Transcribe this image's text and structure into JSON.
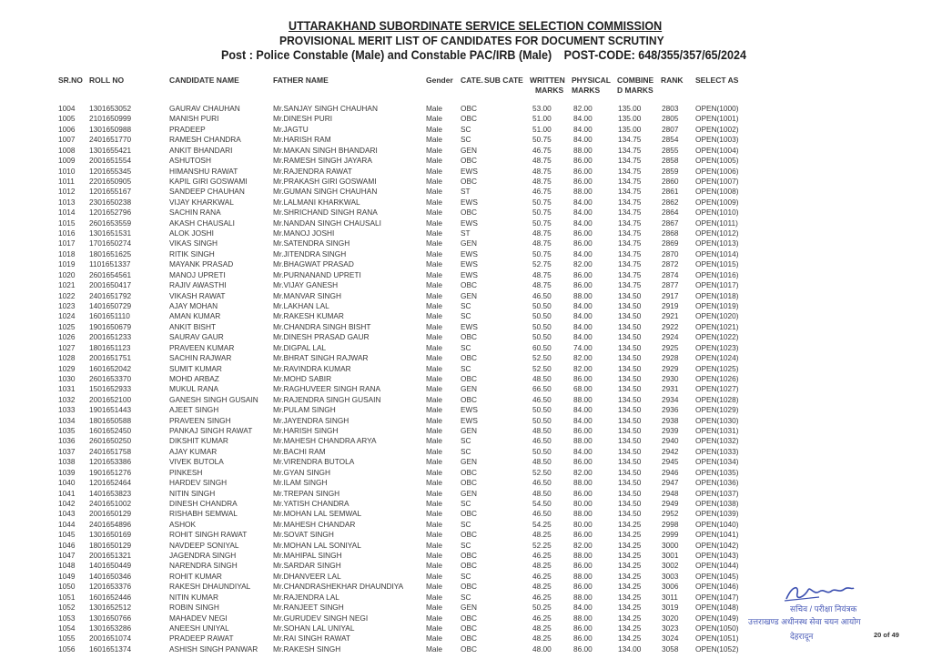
{
  "header": {
    "title": "UTTARAKHAND SUBORDINATE SERVICE SELECTION COMMISSION",
    "subtitle": "PROVISIONAL MERIT LIST OF CANDIDATES FOR DOCUMENT SCRUTINY",
    "post": "Post :  Police Constable (Male) and Constable PAC/IRB (Male)",
    "post_code": "POST-CODE: 648/355/357/65/2024"
  },
  "columns": {
    "sr_no": "SR.NO",
    "roll_no": "ROLL NO",
    "candidate_name": "CANDIDATE NAME",
    "father_name": "FATHER NAME",
    "gender": "Gender",
    "category": "CATE.",
    "sub_cate": "SUB CATE",
    "written_1": "WRITTEN",
    "written_2": "MARKS",
    "physical_1": "PHYSICAL",
    "physical_2": "MARKS",
    "combined_1": "COMBINE",
    "combined_2": "D MARKS",
    "rank": "RANK",
    "select_as": "SELECT AS"
  },
  "rows": [
    [
      "1004",
      "1301653052",
      "GAURAV CHAUHAN",
      "Mr.SANJAY SINGH CHAUHAN",
      "Male",
      "OBC",
      "",
      "53.00",
      "82.00",
      "135.00",
      "2803",
      "OPEN(1000)"
    ],
    [
      "1005",
      "2101650999",
      "MANISH PURI",
      "Mr.DINESH PURI",
      "Male",
      "OBC",
      "",
      "51.00",
      "84.00",
      "135.00",
      "2805",
      "OPEN(1001)"
    ],
    [
      "1006",
      "1301650988",
      "PRADEEP",
      "Mr.JAGTU",
      "Male",
      "SC",
      "",
      "51.00",
      "84.00",
      "135.00",
      "2807",
      "OPEN(1002)"
    ],
    [
      "1007",
      "2401651770",
      "RAMESH CHANDRA",
      "Mr.HARISH RAM",
      "Male",
      "SC",
      "",
      "50.75",
      "84.00",
      "134.75",
      "2854",
      "OPEN(1003)"
    ],
    [
      "1008",
      "1301655421",
      "ANKIT BHANDARI",
      "Mr.MAKAN SINGH BHANDARI",
      "Male",
      "GEN",
      "",
      "46.75",
      "88.00",
      "134.75",
      "2855",
      "OPEN(1004)"
    ],
    [
      "1009",
      "2001651554",
      "ASHUTOSH",
      "Mr.RAMESH SINGH JAYARA",
      "Male",
      "OBC",
      "",
      "48.75",
      "86.00",
      "134.75",
      "2858",
      "OPEN(1005)"
    ],
    [
      "1010",
      "1201655345",
      "HIMANSHU RAWAT",
      "Mr.RAJENDRA RAWAT",
      "Male",
      "EWS",
      "",
      "48.75",
      "86.00",
      "134.75",
      "2859",
      "OPEN(1006)"
    ],
    [
      "1011",
      "2201650905",
      "KAPIL GIRI GOSWAMI",
      "Mr.PRAKASH GIRI GOSWAMI",
      "Male",
      "OBC",
      "",
      "48.75",
      "86.00",
      "134.75",
      "2860",
      "OPEN(1007)"
    ],
    [
      "1012",
      "1201655167",
      "SANDEEP CHAUHAN",
      "Mr.GUMAN SINGH CHAUHAN",
      "Male",
      "ST",
      "",
      "46.75",
      "88.00",
      "134.75",
      "2861",
      "OPEN(1008)"
    ],
    [
      "1013",
      "2301650238",
      "VIJAY KHARKWAL",
      "Mr.LALMANI KHARKWAL",
      "Male",
      "EWS",
      "",
      "50.75",
      "84.00",
      "134.75",
      "2862",
      "OPEN(1009)"
    ],
    [
      "1014",
      "1201652796",
      "SACHIN RANA",
      "Mr.SHRICHAND SINGH RANA",
      "Male",
      "OBC",
      "",
      "50.75",
      "84.00",
      "134.75",
      "2864",
      "OPEN(1010)"
    ],
    [
      "1015",
      "2601653559",
      "AKASH CHAUSALI",
      "Mr.NANDAN SINGH CHAUSALI",
      "Male",
      "EWS",
      "",
      "50.75",
      "84.00",
      "134.75",
      "2867",
      "OPEN(1011)"
    ],
    [
      "1016",
      "1301651531",
      "ALOK JOSHI",
      "Mr.MANOJ JOSHI",
      "Male",
      "ST",
      "",
      "48.75",
      "86.00",
      "134.75",
      "2868",
      "OPEN(1012)"
    ],
    [
      "1017",
      "1701650274",
      "VIKAS SINGH",
      "Mr.SATENDRA SINGH",
      "Male",
      "GEN",
      "",
      "48.75",
      "86.00",
      "134.75",
      "2869",
      "OPEN(1013)"
    ],
    [
      "1018",
      "1801651625",
      "RITIK SINGH",
      "Mr.JITENDRA SINGH",
      "Male",
      "EWS",
      "",
      "50.75",
      "84.00",
      "134.75",
      "2870",
      "OPEN(1014)"
    ],
    [
      "1019",
      "1101651337",
      "MAYANK PRASAD",
      "Mr.BHAGWAT PRASAD",
      "Male",
      "EWS",
      "",
      "52.75",
      "82.00",
      "134.75",
      "2872",
      "OPEN(1015)"
    ],
    [
      "1020",
      "2601654561",
      "MANOJ UPRETI",
      "Mr.PURNANAND UPRETI",
      "Male",
      "EWS",
      "",
      "48.75",
      "86.00",
      "134.75",
      "2874",
      "OPEN(1016)"
    ],
    [
      "1021",
      "2001650417",
      "RAJIV AWASTHI",
      "Mr.VIJAY GANESH",
      "Male",
      "OBC",
      "",
      "48.75",
      "86.00",
      "134.75",
      "2877",
      "OPEN(1017)"
    ],
    [
      "1022",
      "2401651792",
      "VIKASH RAWAT",
      "Mr.MANVAR SINGH",
      "Male",
      "GEN",
      "",
      "46.50",
      "88.00",
      "134.50",
      "2917",
      "OPEN(1018)"
    ],
    [
      "1023",
      "1401650729",
      "AJAY MOHAN",
      "Mr.LAKHAN LAL",
      "Male",
      "SC",
      "",
      "50.50",
      "84.00",
      "134.50",
      "2919",
      "OPEN(1019)"
    ],
    [
      "1024",
      "1601651110",
      "AMAN KUMAR",
      "Mr.RAKESH KUMAR",
      "Male",
      "SC",
      "",
      "50.50",
      "84.00",
      "134.50",
      "2921",
      "OPEN(1020)"
    ],
    [
      "1025",
      "1901650679",
      "ANKIT BISHT",
      "Mr.CHANDRA SINGH BISHT",
      "Male",
      "EWS",
      "",
      "50.50",
      "84.00",
      "134.50",
      "2922",
      "OPEN(1021)"
    ],
    [
      "1026",
      "2001651233",
      "SAURAV GAUR",
      "Mr.DINESH PRASAD GAUR",
      "Male",
      "OBC",
      "",
      "50.50",
      "84.00",
      "134.50",
      "2924",
      "OPEN(1022)"
    ],
    [
      "1027",
      "1801651123",
      "PRAVEEN KUMAR",
      "Mr.DIGPAL LAL",
      "Male",
      "SC",
      "",
      "60.50",
      "74.00",
      "134.50",
      "2925",
      "OPEN(1023)"
    ],
    [
      "1028",
      "2001651751",
      "SACHIN RAJWAR",
      "Mr.BHRAT SINGH RAJWAR",
      "Male",
      "OBC",
      "",
      "52.50",
      "82.00",
      "134.50",
      "2928",
      "OPEN(1024)"
    ],
    [
      "1029",
      "1601652042",
      "SUMIT KUMAR",
      "Mr.RAVINDRA KUMAR",
      "Male",
      "SC",
      "",
      "52.50",
      "82.00",
      "134.50",
      "2929",
      "OPEN(1025)"
    ],
    [
      "1030",
      "2601653370",
      "MOHD ARBAZ",
      "Mr.MOHD SABIR",
      "Male",
      "OBC",
      "",
      "48.50",
      "86.00",
      "134.50",
      "2930",
      "OPEN(1026)"
    ],
    [
      "1031",
      "1501652933",
      "MUKUL RANA",
      "Mr.RAGHUVEER SINGH RANA",
      "Male",
      "GEN",
      "",
      "66.50",
      "68.00",
      "134.50",
      "2931",
      "OPEN(1027)"
    ],
    [
      "1032",
      "2001652100",
      "GANESH SINGH GUSAIN",
      "Mr.RAJENDRA SINGH GUSAIN",
      "Male",
      "OBC",
      "",
      "46.50",
      "88.00",
      "134.50",
      "2934",
      "OPEN(1028)"
    ],
    [
      "1033",
      "1901651443",
      "AJEET SINGH",
      "Mr.PULAM SINGH",
      "Male",
      "EWS",
      "",
      "50.50",
      "84.00",
      "134.50",
      "2936",
      "OPEN(1029)"
    ],
    [
      "1034",
      "1801650588",
      "PRAVEEN SINGH",
      "Mr.JAYENDRA SINGH",
      "Male",
      "EWS",
      "",
      "50.50",
      "84.00",
      "134.50",
      "2938",
      "OPEN(1030)"
    ],
    [
      "1035",
      "1601652450",
      "PANKAJ SINGH RAWAT",
      "Mr.HARISH SINGH",
      "Male",
      "GEN",
      "",
      "48.50",
      "86.00",
      "134.50",
      "2939",
      "OPEN(1031)"
    ],
    [
      "1036",
      "2601650250",
      "DIKSHIT KUMAR",
      "Mr.MAHESH CHANDRA ARYA",
      "Male",
      "SC",
      "",
      "46.50",
      "88.00",
      "134.50",
      "2940",
      "OPEN(1032)"
    ],
    [
      "1037",
      "2401651758",
      "AJAY KUMAR",
      "Mr.BACHI RAM",
      "Male",
      "SC",
      "",
      "50.50",
      "84.00",
      "134.50",
      "2942",
      "OPEN(1033)"
    ],
    [
      "1038",
      "1201653386",
      "VIVEK BUTOLA",
      "Mr.VIRENDRA BUTOLA",
      "Male",
      "GEN",
      "",
      "48.50",
      "86.00",
      "134.50",
      "2945",
      "OPEN(1034)"
    ],
    [
      "1039",
      "1901651276",
      "PINKESH",
      "Mr.GYAN SINGH",
      "Male",
      "OBC",
      "",
      "52.50",
      "82.00",
      "134.50",
      "2946",
      "OPEN(1035)"
    ],
    [
      "1040",
      "1201652464",
      "HARDEV SINGH",
      "Mr.ILAM SINGH",
      "Male",
      "OBC",
      "",
      "46.50",
      "88.00",
      "134.50",
      "2947",
      "OPEN(1036)"
    ],
    [
      "1041",
      "1401653823",
      "NITIN SINGH",
      "Mr.TREPAN SINGH",
      "Male",
      "GEN",
      "",
      "48.50",
      "86.00",
      "134.50",
      "2948",
      "OPEN(1037)"
    ],
    [
      "1042",
      "2401651002",
      "DINESH CHANDRA",
      "Mr.YATISH CHANDRA",
      "Male",
      "SC",
      "",
      "54.50",
      "80.00",
      "134.50",
      "2949",
      "OPEN(1038)"
    ],
    [
      "1043",
      "2001650129",
      "RISHABH SEMWAL",
      "Mr.MOHAN LAL SEMWAL",
      "Male",
      "OBC",
      "",
      "46.50",
      "88.00",
      "134.50",
      "2952",
      "OPEN(1039)"
    ],
    [
      "1044",
      "2401654896",
      "ASHOK",
      "Mr.MAHESH CHANDAR",
      "Male",
      "SC",
      "",
      "54.25",
      "80.00",
      "134.25",
      "2998",
      "OPEN(1040)"
    ],
    [
      "1045",
      "1301650169",
      "ROHIT SINGH RAWAT",
      "Mr.SOVAT SINGH",
      "Male",
      "OBC",
      "",
      "48.25",
      "86.00",
      "134.25",
      "2999",
      "OPEN(1041)"
    ],
    [
      "1046",
      "1801650129",
      "NAVDEEP SONIYAL",
      "Mr.MOHAN LAL SONIYAL",
      "Male",
      "SC",
      "",
      "52.25",
      "82.00",
      "134.25",
      "3000",
      "OPEN(1042)"
    ],
    [
      "1047",
      "2001651321",
      "JAGENDRA SINGH",
      "Mr.MAHIPAL SINGH",
      "Male",
      "OBC",
      "",
      "46.25",
      "88.00",
      "134.25",
      "3001",
      "OPEN(1043)"
    ],
    [
      "1048",
      "1401650449",
      "NARENDRA SINGH",
      "Mr.SARDAR SINGH",
      "Male",
      "OBC",
      "",
      "48.25",
      "86.00",
      "134.25",
      "3002",
      "OPEN(1044)"
    ],
    [
      "1049",
      "1401650346",
      "ROHIT KUMAR",
      "Mr.DHANVEER LAL",
      "Male",
      "SC",
      "",
      "46.25",
      "88.00",
      "134.25",
      "3003",
      "OPEN(1045)"
    ],
    [
      "1050",
      "1201653376",
      "RAKESH DHAUNDIYAL",
      "Mr.CHANDRASHEKHAR DHAUNDIYA",
      "Male",
      "OBC",
      "",
      "48.25",
      "86.00",
      "134.25",
      "3006",
      "OPEN(1046)"
    ],
    [
      "1051",
      "1601652446",
      "NITIN KUMAR",
      "Mr.RAJENDRA LAL",
      "Male",
      "SC",
      "",
      "46.25",
      "88.00",
      "134.25",
      "3011",
      "OPEN(1047)"
    ],
    [
      "1052",
      "1301652512",
      "ROBIN SINGH",
      "Mr.RANJEET SINGH",
      "Male",
      "GEN",
      "",
      "50.25",
      "84.00",
      "134.25",
      "3019",
      "OPEN(1048)"
    ],
    [
      "1053",
      "1301650766",
      "MAHADEV NEGI",
      "Mr.GURUDEV SINGH NEGI",
      "Male",
      "OBC",
      "",
      "46.25",
      "88.00",
      "134.25",
      "3020",
      "OPEN(1049)"
    ],
    [
      "1054",
      "1301653286",
      "ANEESH UNIYAL",
      "Mr.SOHAN LAL UNIYAL",
      "Male",
      "OBC",
      "",
      "48.25",
      "86.00",
      "134.25",
      "3023",
      "OPEN(1050)"
    ],
    [
      "1055",
      "2001651074",
      "PRADEEP RAWAT",
      "Mr.RAI SINGH RAWAT",
      "Male",
      "OBC",
      "",
      "48.25",
      "86.00",
      "134.25",
      "3024",
      "OPEN(1051)"
    ],
    [
      "1056",
      "1601651374",
      "ASHISH SINGH PANWAR",
      "Mr.RAKESH SINGH",
      "Male",
      "OBC",
      "",
      "48.00",
      "86.00",
      "134.00",
      "3058",
      "OPEN(1052)"
    ]
  ],
  "stamp": {
    "line1": "सचिव / परीक्षा नियंत्रक",
    "line2": "उत्तराखण्ड अधीनस्थ सेवा चयन आयोग",
    "line3": "देहरादून",
    "color": "#4a5bb8"
  },
  "footer": {
    "page": "20 of 49"
  }
}
